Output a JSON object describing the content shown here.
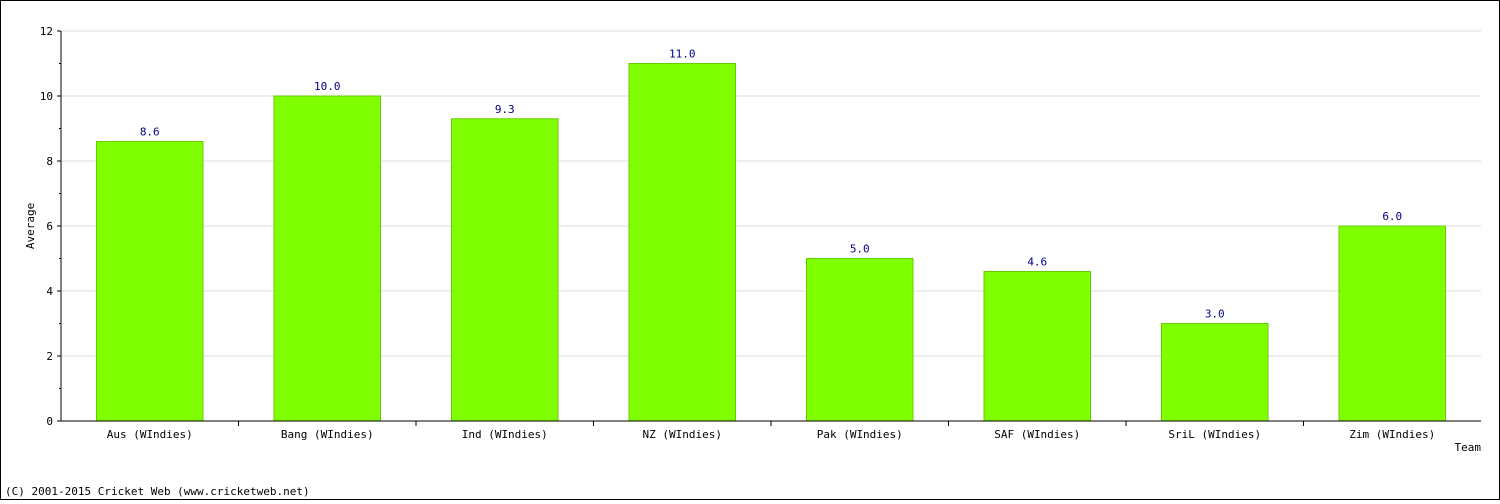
{
  "chart_data": {
    "type": "bar",
    "title": "",
    "xlabel": "Team",
    "ylabel": "Average",
    "categories": [
      "Aus (WIndies)",
      "Bang (WIndies)",
      "Ind (WIndies)",
      "NZ (WIndies)",
      "Pak (WIndies)",
      "SAF (WIndies)",
      "SriL (WIndies)",
      "Zim (WIndies)"
    ],
    "values": [
      8.6,
      10.0,
      9.3,
      11.0,
      5.0,
      4.6,
      3.0,
      6.0
    ],
    "value_labels": [
      "8.6",
      "10.0",
      "9.3",
      "11.0",
      "5.0",
      "4.6",
      "3.0",
      "6.0"
    ],
    "ylim": [
      0,
      12
    ],
    "yticks": [
      0,
      2,
      4,
      6,
      8,
      10,
      12
    ],
    "grid": true,
    "bar_color": "#80ff00",
    "bar_edge_color": "#66cc00"
  },
  "footer": {
    "copyright": "(C) 2001-2015 Cricket Web (www.cricketweb.net)"
  }
}
